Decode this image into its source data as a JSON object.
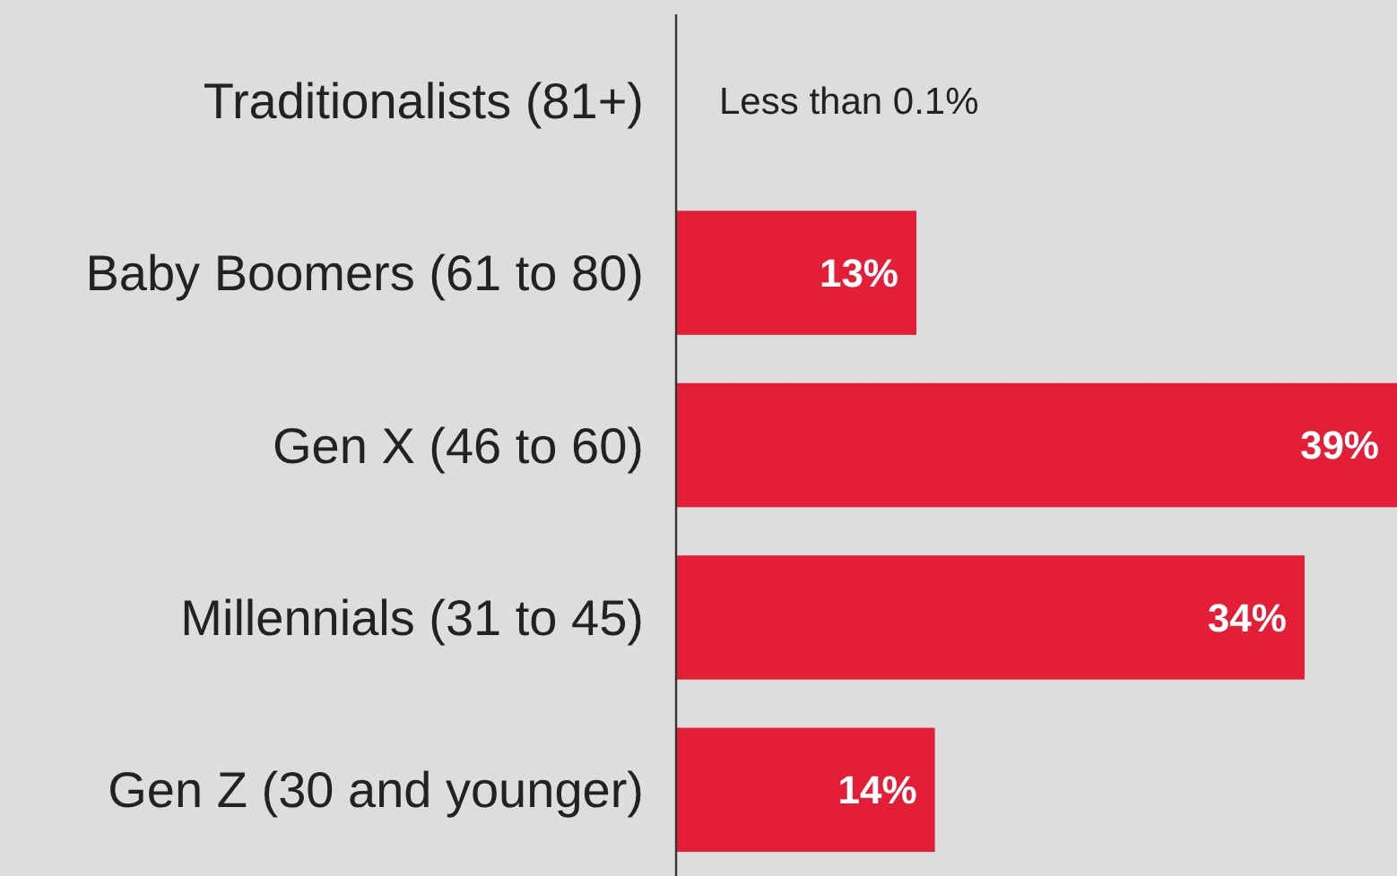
{
  "chart_data": {
    "type": "bar",
    "orientation": "horizontal",
    "categories": [
      "Traditionalists (81+)",
      "Baby Boomers (61 to 80)",
      "Gen X (46 to 60)",
      "Millennials (31 to 45)",
      "Gen Z (30 and younger)"
    ],
    "values": [
      0,
      13,
      39,
      34,
      14
    ],
    "value_labels": [
      "Less than 0.1%",
      "13%",
      "39%",
      "34%",
      "14%"
    ],
    "color": "#e51e38",
    "xlim": [
      0,
      39
    ],
    "tick_labels": "y"
  }
}
